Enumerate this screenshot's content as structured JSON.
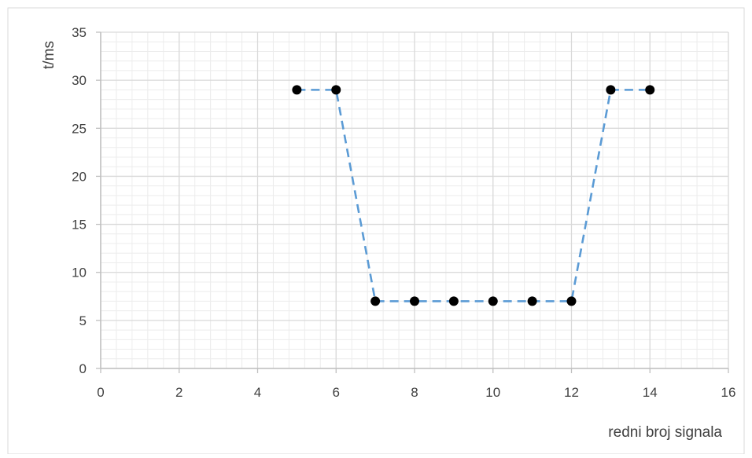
{
  "chart_data": {
    "type": "scatter",
    "title": "",
    "xlabel": "redni broj signala",
    "ylabel": "t/ms",
    "xlim": [
      0,
      16
    ],
    "ylim": [
      0,
      35
    ],
    "x_ticks": [
      0,
      2,
      4,
      6,
      8,
      10,
      12,
      14,
      16
    ],
    "y_ticks": [
      0,
      5,
      10,
      15,
      20,
      25,
      30,
      35
    ],
    "x_tick_labels": [
      "0",
      "2",
      "4",
      "6",
      "8",
      "10",
      "12",
      "14",
      "16"
    ],
    "y_tick_labels": [
      "0",
      "5",
      "10",
      "15",
      "20",
      "25",
      "30",
      "35"
    ],
    "grid": "major and minor",
    "legend": "none",
    "series": [
      {
        "x": [
          5,
          6,
          7,
          8,
          9,
          10,
          11,
          12,
          13,
          14
        ],
        "y": [
          29,
          29,
          7,
          7,
          7,
          7,
          7,
          7,
          29,
          29
        ],
        "marker": "circle",
        "marker_color": "#000000",
        "line_style": "dashed",
        "line_color": "#5b9bd5"
      }
    ],
    "colors": {
      "major_grid": "#d9d9d9",
      "minor_grid": "#ececec",
      "axis_line": "#bfbfbf",
      "border": "#d9d9d9"
    }
  }
}
